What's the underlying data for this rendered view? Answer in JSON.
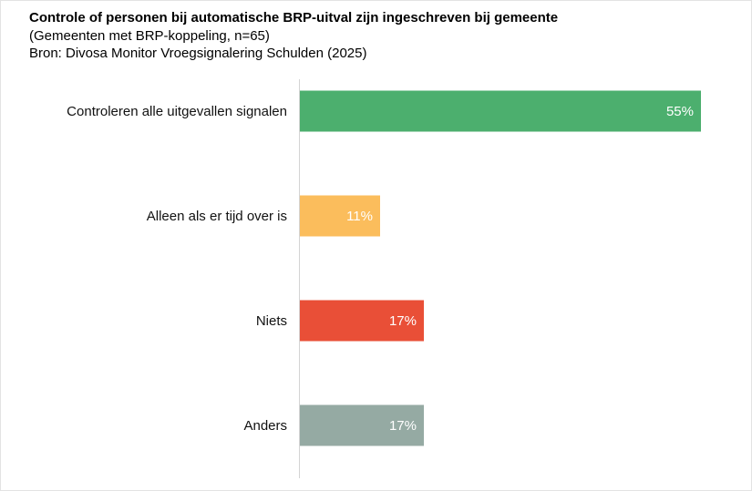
{
  "chart_data": {
    "type": "bar",
    "orientation": "horizontal",
    "title": "Controle of personen bij automatische BRP-uitval zijn ingeschreven bij gemeente",
    "subtitle": "(Gemeenten met BRP-koppeling, n=65)",
    "source": "Bron: Divosa Monitor Vroegsignalering Schulden (2025)",
    "categories": [
      "Controleren alle uitgevallen signalen",
      "Alleen als er tijd over is",
      "Niets",
      "Anders"
    ],
    "values": [
      55,
      11,
      17,
      17
    ],
    "value_labels": [
      "55%",
      "11%",
      "17%",
      "17%"
    ],
    "colors": [
      "#4caf6e",
      "#fbbd5c",
      "#e94f37",
      "#95aaa3"
    ],
    "xlim": [
      0,
      55
    ],
    "unit": "%"
  }
}
